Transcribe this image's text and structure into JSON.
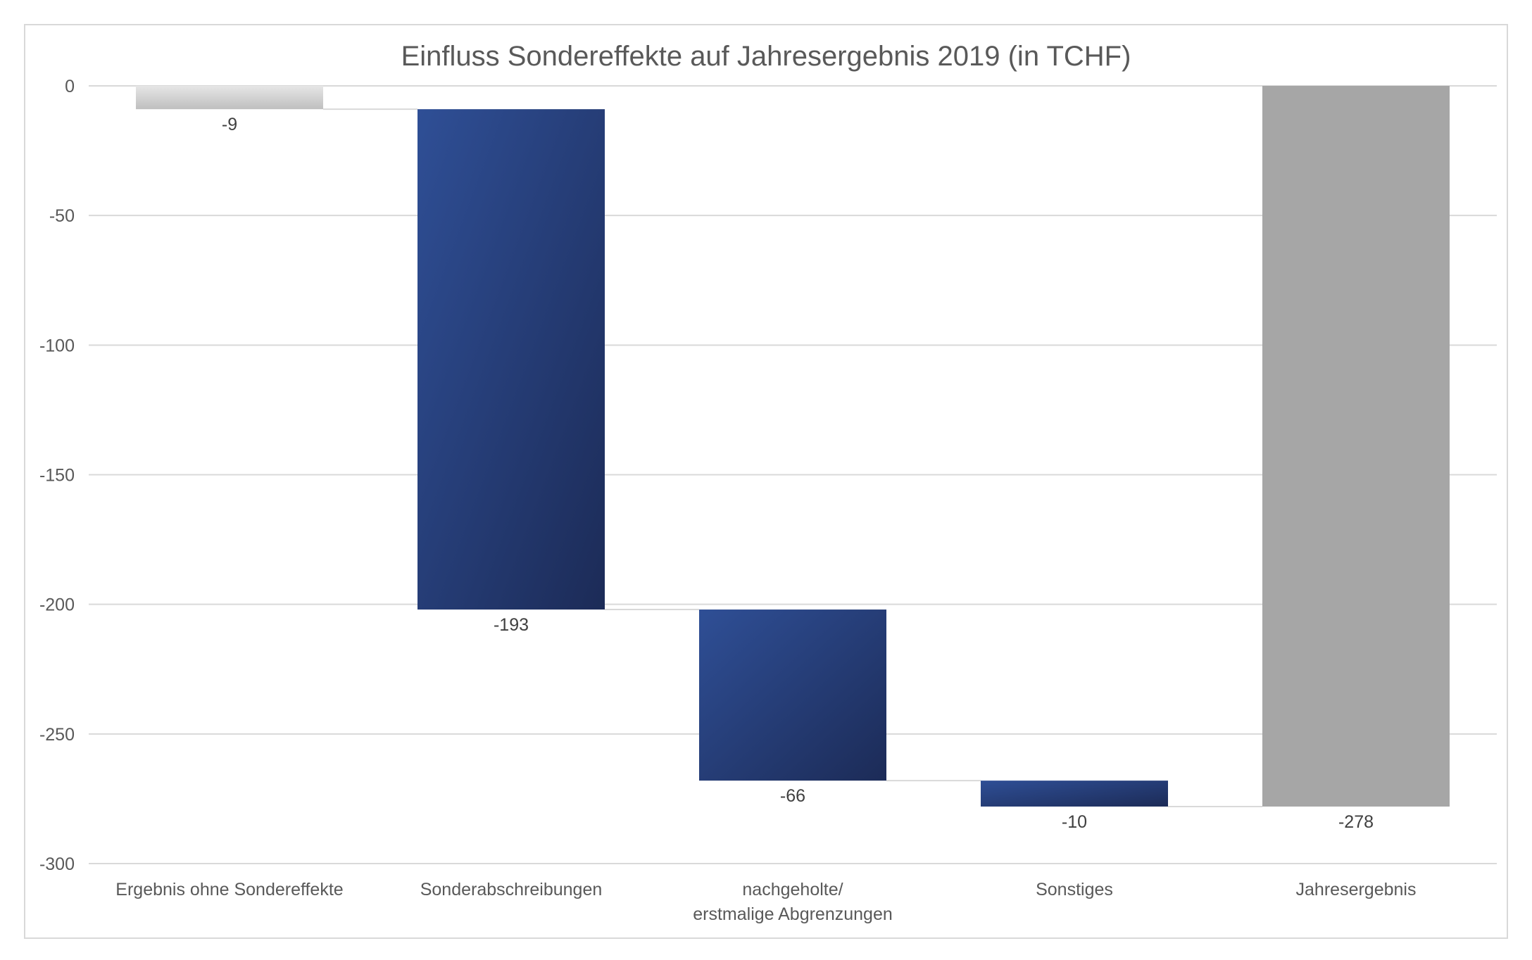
{
  "chart_data": {
    "type": "bar",
    "subtype": "waterfall",
    "title": "Einfluss Sondereffekte auf Jahresergebnis 2019 (in TCHF)",
    "xlabel": "",
    "ylabel": "",
    "ylim": [
      -300,
      0
    ],
    "yticks": [
      0,
      -50,
      -100,
      -150,
      -200,
      -250,
      -300
    ],
    "ytick_labels": [
      "0",
      "-50",
      "-100",
      "-150",
      "-200",
      "-250",
      "-300"
    ],
    "grid": true,
    "legend": "none",
    "categories": [
      [
        "Ergebnis ohne Sondereffekte"
      ],
      [
        "Sonderabschreibungen"
      ],
      [
        "nachgeholte/",
        "erstmalige Abgrenzungen"
      ],
      [
        "Sonstiges"
      ],
      [
        "Jahresergebnis"
      ]
    ],
    "values": [
      -9,
      -193,
      -66,
      -10,
      -278
    ],
    "bar_kind": [
      "start",
      "delta",
      "delta",
      "delta",
      "total"
    ],
    "data_labels": [
      "-9",
      "-193",
      "-66",
      "-10",
      "-278"
    ],
    "colors": {
      "start_top": "#e6e6e6",
      "start_bottom": "#bfbfbf",
      "delta_top": "#2f4f96",
      "delta_bottom": "#1c2b57",
      "total": "#a6a6a6",
      "grid": "#d9d9d9",
      "connector": "#d9d9d9"
    }
  }
}
